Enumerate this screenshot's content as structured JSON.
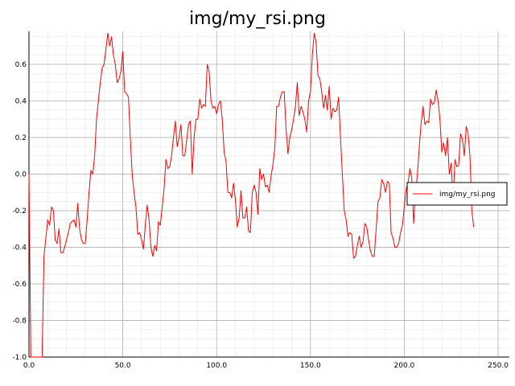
{
  "chart_data": {
    "type": "line",
    "title": "img/my_rsi.png",
    "xlabel": "",
    "ylabel": "",
    "xlim": [
      0,
      256
    ],
    "ylim": [
      -1.0,
      0.78
    ],
    "grid": true,
    "legend_position": "right",
    "x_ticks": [
      0,
      50,
      100,
      150,
      200,
      250
    ],
    "x_tick_labels": [
      "0.0",
      "50.0",
      "100.0",
      "150.0",
      "200.0",
      "250.0"
    ],
    "y_ticks": [
      -1.0,
      -0.8,
      -0.6,
      -0.4,
      -0.2,
      0.0,
      0.2,
      0.4,
      0.6
    ],
    "y_tick_labels": [
      "-1.0",
      "-0.8",
      "-0.6",
      "-0.4",
      "-0.2",
      "0.0",
      "0.2",
      "0.4",
      "0.6"
    ],
    "series": [
      {
        "name": "img/my_rsi.png",
        "color": "#ff0000",
        "points": [
          [
            0,
            0.0
          ],
          [
            1,
            -1.0
          ],
          [
            7,
            -1.0
          ],
          [
            8,
            -0.45
          ],
          [
            10,
            -0.25
          ],
          [
            11,
            -0.28
          ],
          [
            12,
            -0.18
          ],
          [
            13,
            -0.2
          ],
          [
            14,
            -0.36
          ],
          [
            15,
            -0.38
          ],
          [
            16,
            -0.3
          ],
          [
            17,
            -0.43
          ],
          [
            18,
            -0.43
          ],
          [
            19,
            -0.4
          ],
          [
            21,
            -0.32
          ],
          [
            22,
            -0.27
          ],
          [
            23,
            -0.26
          ],
          [
            24,
            -0.25
          ],
          [
            25,
            -0.29
          ],
          [
            26,
            -0.16
          ],
          [
            27,
            -0.3
          ],
          [
            28,
            -0.36
          ],
          [
            29,
            -0.38
          ],
          [
            30,
            -0.38
          ],
          [
            31,
            -0.25
          ],
          [
            32,
            -0.1
          ],
          [
            33,
            0.02
          ],
          [
            34,
            0.0
          ],
          [
            35,
            0.1
          ],
          [
            36,
            0.3
          ],
          [
            37,
            0.4
          ],
          [
            38,
            0.5
          ],
          [
            39,
            0.58
          ],
          [
            40,
            0.6
          ],
          [
            41,
            0.68
          ],
          [
            42,
            0.77
          ],
          [
            43,
            0.7
          ],
          [
            44,
            0.75
          ],
          [
            45,
            0.65
          ],
          [
            46,
            0.6
          ],
          [
            47,
            0.5
          ],
          [
            48,
            0.52
          ],
          [
            49,
            0.56
          ],
          [
            50,
            0.67
          ],
          [
            51,
            0.45
          ],
          [
            52,
            0.44
          ],
          [
            53,
            0.42
          ],
          [
            54,
            0.2
          ],
          [
            55,
            0.0
          ],
          [
            56,
            -0.1
          ],
          [
            57,
            -0.18
          ],
          [
            58,
            -0.33
          ],
          [
            59,
            -0.32
          ],
          [
            60,
            -0.36
          ],
          [
            61,
            -0.41
          ],
          [
            62,
            -0.28
          ],
          [
            63,
            -0.17
          ],
          [
            64,
            -0.25
          ],
          [
            65,
            -0.4
          ],
          [
            66,
            -0.45
          ],
          [
            67,
            -0.39
          ],
          [
            68,
            -0.42
          ],
          [
            69,
            -0.26
          ],
          [
            70,
            -0.28
          ],
          [
            71,
            -0.18
          ],
          [
            72,
            -0.08
          ],
          [
            73,
            0.08
          ],
          [
            74,
            0.03
          ],
          [
            75,
            0.04
          ],
          [
            76,
            0.1
          ],
          [
            77,
            0.2
          ],
          [
            78,
            0.29
          ],
          [
            79,
            0.15
          ],
          [
            80,
            0.2
          ],
          [
            81,
            0.27
          ],
          [
            82,
            0.1
          ],
          [
            83,
            0.1
          ],
          [
            84,
            0.18
          ],
          [
            85,
            0.27
          ],
          [
            86,
            0.29
          ],
          [
            87,
            0.0
          ],
          [
            88,
            0.2
          ],
          [
            89,
            0.3
          ],
          [
            90,
            0.3
          ],
          [
            91,
            0.41
          ],
          [
            92,
            0.36
          ],
          [
            93,
            0.38
          ],
          [
            94,
            0.37
          ],
          [
            95,
            0.6
          ],
          [
            96,
            0.56
          ],
          [
            97,
            0.4
          ],
          [
            98,
            0.36
          ],
          [
            99,
            0.37
          ],
          [
            100,
            0.33
          ],
          [
            101,
            0.38
          ],
          [
            102,
            0.4
          ],
          [
            103,
            0.3
          ],
          [
            104,
            0.12
          ],
          [
            105,
            0.07
          ],
          [
            106,
            -0.1
          ],
          [
            107,
            -0.1
          ],
          [
            108,
            -0.13
          ],
          [
            109,
            -0.05
          ],
          [
            110,
            -0.14
          ],
          [
            111,
            -0.29
          ],
          [
            112,
            -0.24
          ],
          [
            113,
            -0.09
          ],
          [
            114,
            -0.24
          ],
          [
            115,
            -0.24
          ],
          [
            116,
            -0.18
          ],
          [
            117,
            -0.31
          ],
          [
            118,
            -0.32
          ],
          [
            119,
            -0.1
          ],
          [
            120,
            -0.06
          ],
          [
            121,
            -0.1
          ],
          [
            122,
            -0.22
          ],
          [
            123,
            0.03
          ],
          [
            124,
            -0.03
          ],
          [
            125,
            0.0
          ],
          [
            126,
            -0.07
          ],
          [
            127,
            -0.06
          ],
          [
            128,
            -0.1
          ],
          [
            129,
            -0.01
          ],
          [
            130,
            0.05
          ],
          [
            131,
            0.14
          ],
          [
            132,
            0.37
          ],
          [
            133,
            0.37
          ],
          [
            134,
            0.42
          ],
          [
            135,
            0.45
          ],
          [
            136,
            0.45
          ],
          [
            137,
            0.25
          ],
          [
            138,
            0.11
          ],
          [
            139,
            0.2
          ],
          [
            140,
            0.24
          ],
          [
            141,
            0.3
          ],
          [
            142,
            0.37
          ],
          [
            143,
            0.5
          ],
          [
            144,
            0.32
          ],
          [
            145,
            0.37
          ],
          [
            146,
            0.34
          ],
          [
            147,
            0.3
          ],
          [
            148,
            0.23
          ],
          [
            149,
            0.4
          ],
          [
            150,
            0.45
          ],
          [
            151,
            0.65
          ],
          [
            152,
            0.77
          ],
          [
            153,
            0.72
          ],
          [
            154,
            0.54
          ],
          [
            155,
            0.52
          ],
          [
            156,
            0.45
          ],
          [
            157,
            0.36
          ],
          [
            158,
            0.43
          ],
          [
            159,
            0.35
          ],
          [
            160,
            0.48
          ],
          [
            161,
            0.3
          ],
          [
            162,
            0.36
          ],
          [
            163,
            0.34
          ],
          [
            164,
            0.35
          ],
          [
            165,
            0.42
          ],
          [
            166,
            0.2
          ],
          [
            167,
            0.0
          ],
          [
            168,
            -0.2
          ],
          [
            169,
            -0.25
          ],
          [
            170,
            -0.34
          ],
          [
            171,
            -0.32
          ],
          [
            172,
            -0.33
          ],
          [
            173,
            -0.46
          ],
          [
            174,
            -0.45
          ],
          [
            175,
            -0.39
          ],
          [
            176,
            -0.34
          ],
          [
            177,
            -0.4
          ],
          [
            178,
            -0.37
          ],
          [
            179,
            -0.27
          ],
          [
            180,
            -0.29
          ],
          [
            181,
            -0.36
          ],
          [
            182,
            -0.42
          ],
          [
            183,
            -0.45
          ],
          [
            184,
            -0.45
          ],
          [
            185,
            -0.3
          ],
          [
            186,
            -0.15
          ],
          [
            187,
            -0.13
          ],
          [
            188,
            -0.03
          ],
          [
            189,
            -0.05
          ],
          [
            190,
            -0.1
          ],
          [
            191,
            -0.04
          ],
          [
            192,
            -0.05
          ],
          [
            193,
            -0.32
          ],
          [
            194,
            -0.35
          ],
          [
            195,
            -0.4
          ],
          [
            196,
            -0.4
          ],
          [
            197,
            -0.38
          ],
          [
            198,
            -0.32
          ],
          [
            199,
            -0.28
          ],
          [
            200,
            -0.18
          ],
          [
            201,
            -0.08
          ],
          [
            202,
            -0.05
          ],
          [
            203,
            0.03
          ],
          [
            204,
            -0.02
          ],
          [
            205,
            -0.27
          ],
          [
            206,
            -0.1
          ],
          [
            207,
            0.0
          ],
          [
            208,
            0.15
          ],
          [
            209,
            0.28
          ],
          [
            210,
            0.37
          ],
          [
            211,
            0.27
          ],
          [
            212,
            0.29
          ],
          [
            213,
            0.28
          ],
          [
            214,
            0.41
          ],
          [
            215,
            0.38
          ],
          [
            216,
            0.39
          ],
          [
            217,
            0.46
          ],
          [
            218,
            0.4
          ],
          [
            219,
            0.3
          ],
          [
            220,
            0.12
          ],
          [
            221,
            0.17
          ],
          [
            222,
            0.1
          ],
          [
            223,
            0.2
          ],
          [
            224,
            0.0
          ],
          [
            225,
            0.06
          ],
          [
            226,
            -0.15
          ],
          [
            227,
            0.08
          ],
          [
            228,
            0.04
          ],
          [
            229,
            0.05
          ],
          [
            230,
            0.22
          ],
          [
            231,
            0.19
          ],
          [
            232,
            0.1
          ],
          [
            233,
            0.26
          ],
          [
            234,
            0.22
          ],
          [
            235,
            0.1
          ],
          [
            236,
            -0.2
          ],
          [
            237,
            -0.29
          ]
        ]
      }
    ]
  }
}
